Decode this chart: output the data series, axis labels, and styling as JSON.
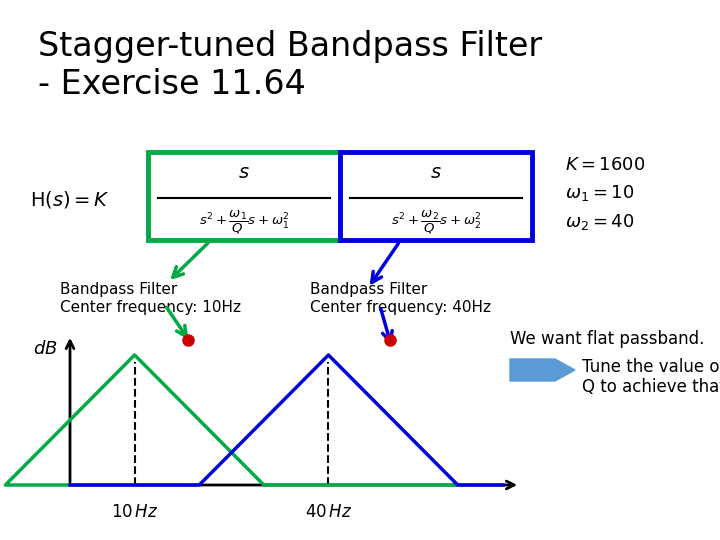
{
  "title_line1": "Stagger-tuned Bandpass Filter",
  "title_line2": "- Exercise 11.64",
  "title_fontsize": 24,
  "bg_color": "#ffffff",
  "green_color": "#00aa44",
  "blue_color": "#0000dd",
  "red_color": "#cc0000",
  "arrow_fill": "#5b9bd5",
  "text_color": "#000000",
  "label1_line1": "Bandpass Filter",
  "label1_line2": "Center frequency: 10Hz",
  "label2_line1": "Bandpass Filter",
  "label2_line2": "Center frequency: 40Hz",
  "note1": "We want flat passband.",
  "note2_line1": "Tune the value of",
  "note2_line2": "Q to achieve that",
  "freq1": 10,
  "freq2": 40,
  "bw": 20
}
